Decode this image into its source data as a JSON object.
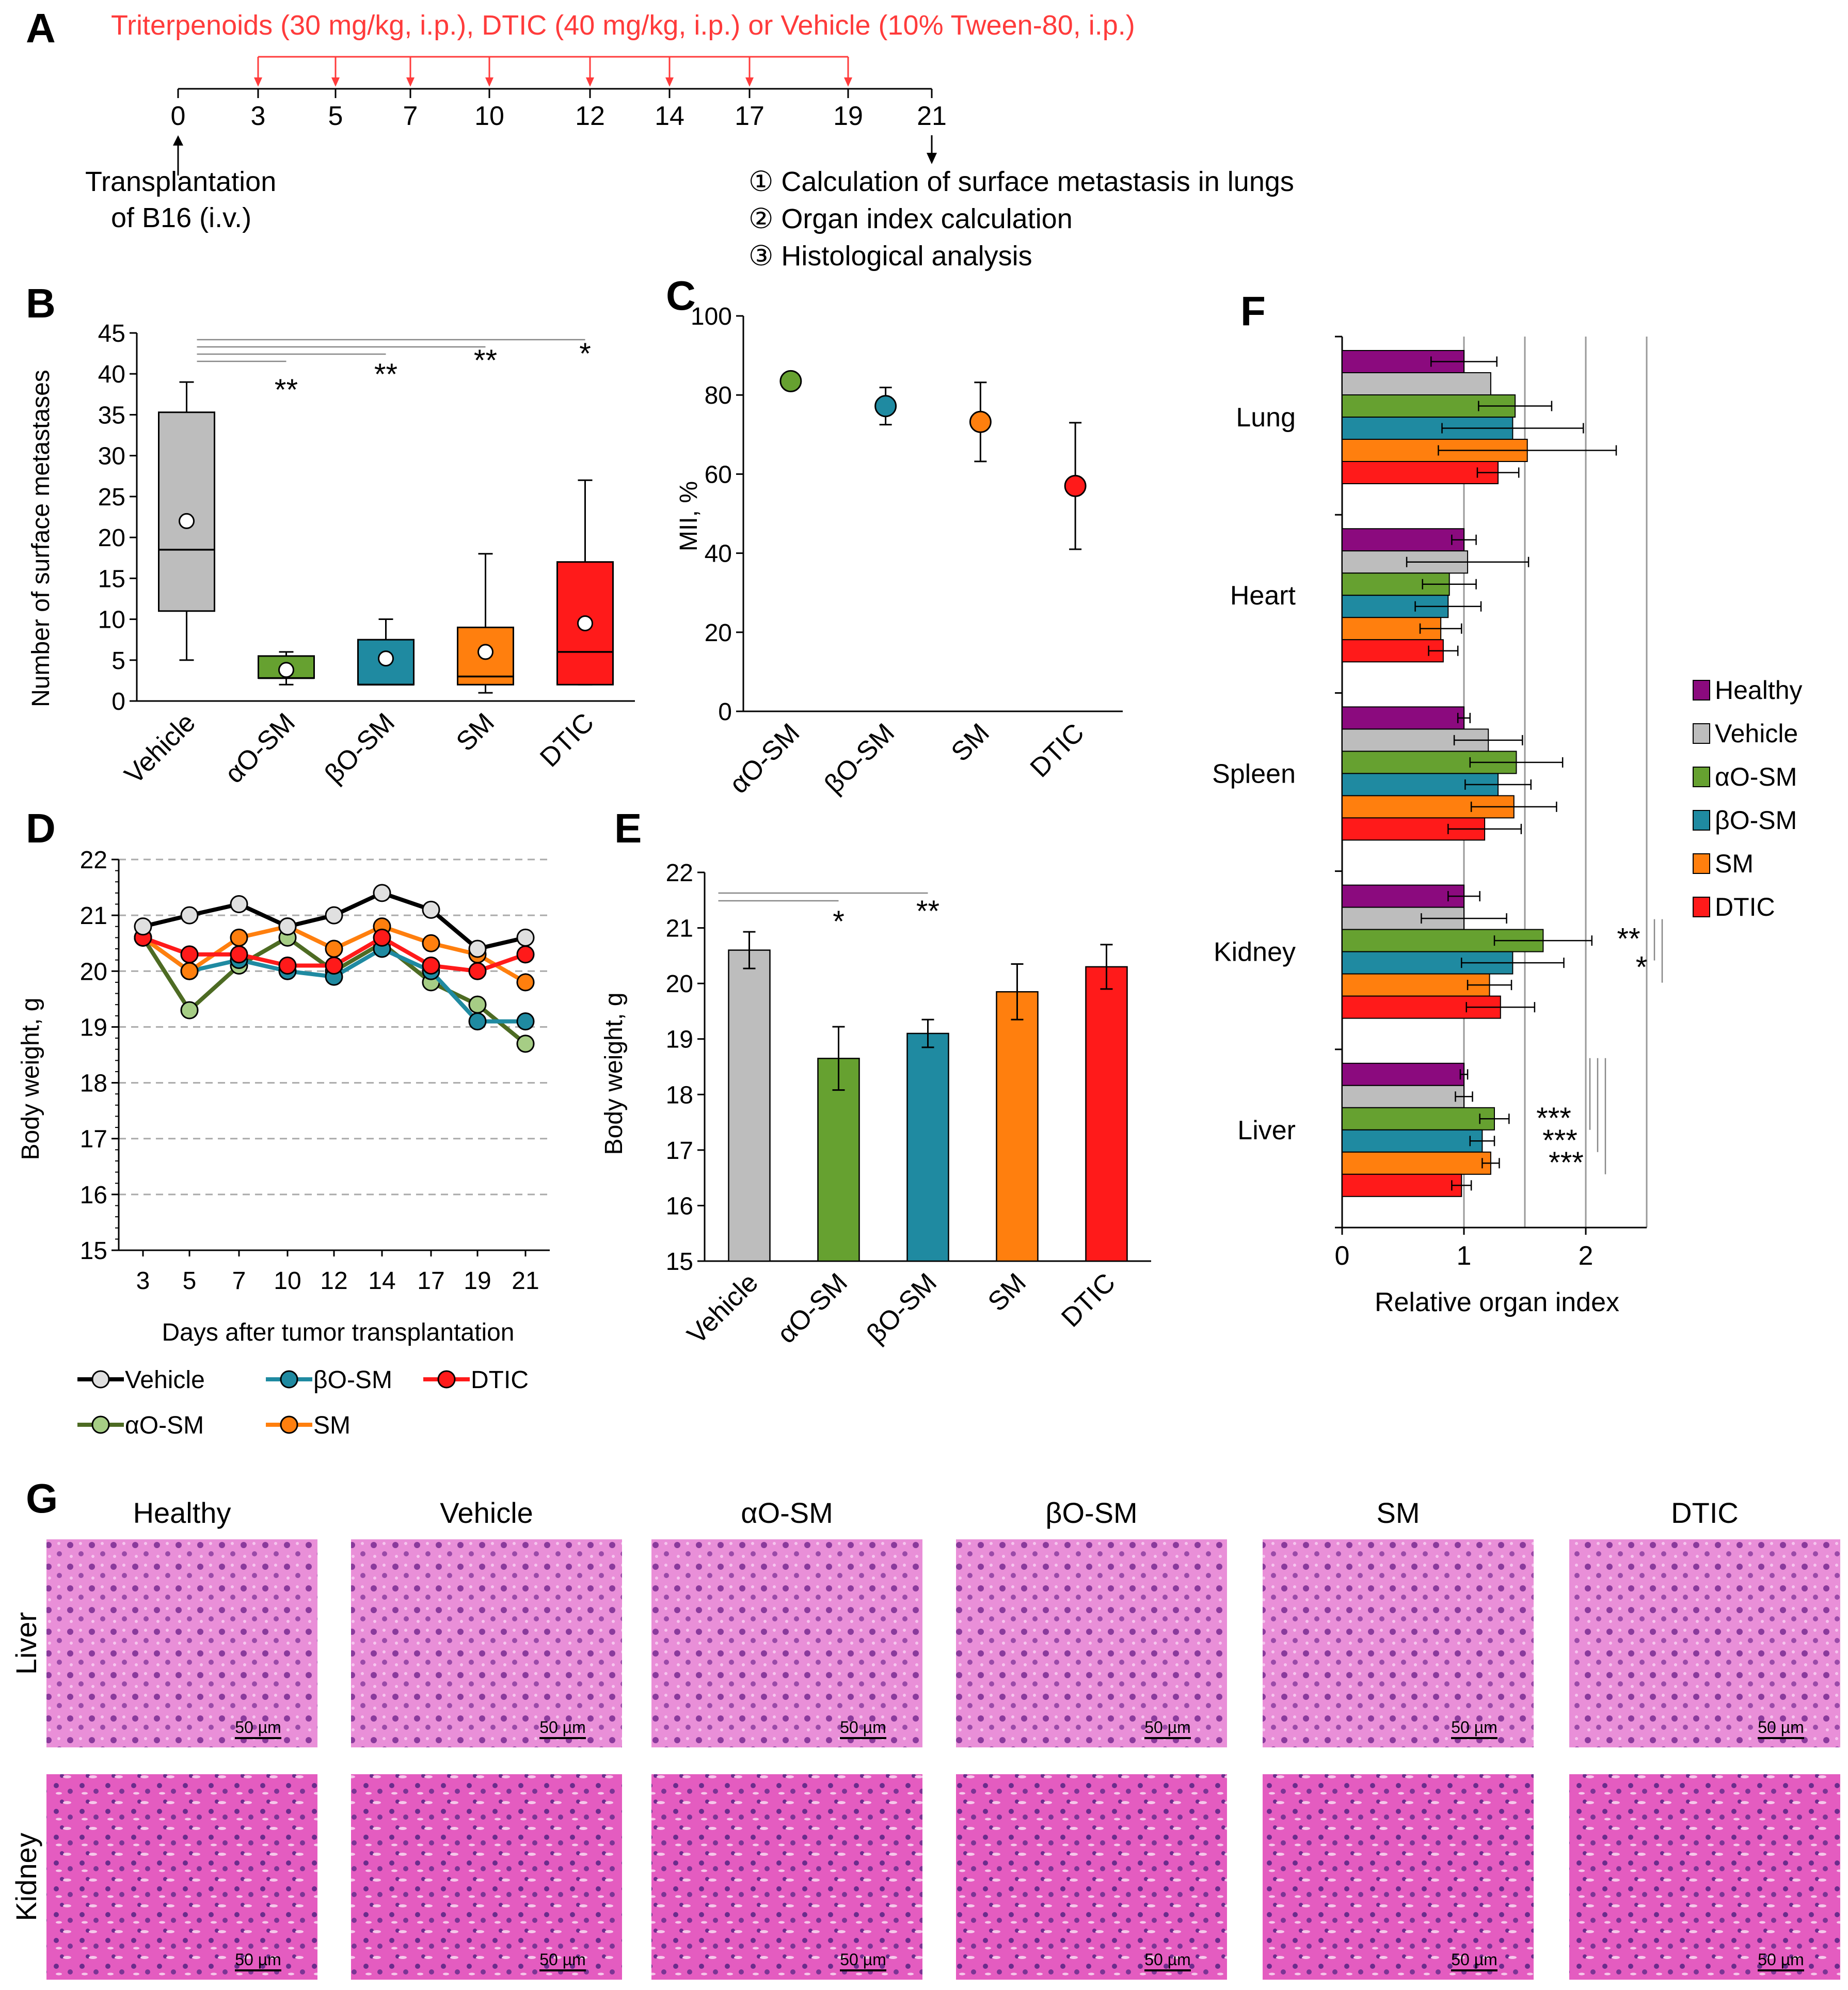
{
  "panels": {
    "A": "A",
    "B": "B",
    "C": "C",
    "D": "D",
    "E": "E",
    "F": "F",
    "G": "G"
  },
  "colors": {
    "Healthy": "#8b0a7e",
    "Vehicle": "#bdbdbd",
    "aO-SM": "#66a130",
    "bO-SM": "#1f8aa1",
    "SM": "#ff7f0e",
    "DTIC": "#ff1a1a",
    "aO-SM-line": "#4d6b23",
    "aO-SM-marker": "#a6cd85"
  },
  "timeline": {
    "treatment_label": "Triterpenoids (30 mg/kg, i.p.), DTIC (40 mg/kg, i.p.) or Vehicle (10% Tween-80, i.p.)",
    "days": [
      "0",
      "3",
      "5",
      "7",
      "10",
      "12",
      "14",
      "17",
      "19",
      "21"
    ],
    "treatment_days": [
      "3",
      "5",
      "7",
      "10",
      "12",
      "14",
      "17",
      "19"
    ],
    "transplant_line1": "Transplantation",
    "transplant_line2": "of B16 (i.v.)",
    "outcomes": [
      "① Calculation of surface metastasis in lungs",
      "② Organ index calculation",
      "③ Histological analysis"
    ]
  },
  "chart_data": [
    {
      "id": "B",
      "type": "box",
      "ylabel": "Number of surface metastases",
      "categories": [
        "Vehicle",
        "αO-SM",
        "βO-SM",
        "SM",
        "DTIC"
      ],
      "ylim": [
        0,
        45
      ],
      "yticks": [
        0,
        5,
        10,
        15,
        20,
        25,
        30,
        35,
        40,
        45
      ],
      "boxes": [
        {
          "min": 5,
          "q1": 11,
          "median": 18.5,
          "q3": 35.3,
          "max": 39,
          "mean": 22
        },
        {
          "min": 2,
          "q1": 2.8,
          "median": 2.8,
          "q3": 5.5,
          "max": 6,
          "mean": 3.8
        },
        {
          "min": 2,
          "q1": 2,
          "median": 2,
          "q3": 7.5,
          "max": 10,
          "mean": 5.2
        },
        {
          "min": 1,
          "q1": 2,
          "median": 3,
          "q3": 9,
          "max": 18,
          "mean": 6
        },
        {
          "min": 2,
          "q1": 2,
          "median": 6,
          "q3": 17,
          "max": 27,
          "mean": 9.5
        }
      ],
      "significance": [
        "**",
        "**",
        "**",
        "*"
      ]
    },
    {
      "id": "C",
      "type": "scatter",
      "ylabel": "MII, %",
      "categories": [
        "αO-SM",
        "βO-SM",
        "SM",
        "DTIC"
      ],
      "ylim": [
        0,
        100
      ],
      "yticks": [
        0,
        20,
        40,
        60,
        80,
        100
      ],
      "values": [
        83.5,
        77.2,
        73.2,
        57
      ],
      "errors": [
        0,
        4.7,
        10,
        16
      ]
    },
    {
      "id": "D",
      "type": "line",
      "ylabel": "Body weight, g",
      "xlabel": "Days after tumor transplantation",
      "x": [
        "3",
        "5",
        "7",
        "10",
        "12",
        "14",
        "17",
        "19",
        "21"
      ],
      "ylim": [
        15,
        22
      ],
      "yticks": [
        15,
        16,
        17,
        18,
        19,
        20,
        21,
        22
      ],
      "series": [
        {
          "name": "Vehicle",
          "values": [
            20.8,
            21.0,
            21.2,
            20.8,
            21.0,
            21.4,
            21.1,
            20.4,
            20.6
          ]
        },
        {
          "name": "αO-SM",
          "values": [
            20.6,
            19.3,
            20.1,
            20.6,
            20.0,
            20.5,
            19.8,
            19.4,
            18.7
          ]
        },
        {
          "name": "βO-SM",
          "values": [
            20.6,
            20.0,
            20.2,
            20.0,
            19.9,
            20.4,
            20.0,
            19.1,
            19.1
          ]
        },
        {
          "name": "SM",
          "values": [
            20.6,
            20.0,
            20.6,
            20.8,
            20.4,
            20.8,
            20.5,
            20.3,
            19.8
          ]
        },
        {
          "name": "DTIC",
          "values": [
            20.6,
            20.3,
            20.3,
            20.1,
            20.1,
            20.6,
            20.1,
            20.0,
            20.3
          ]
        }
      ]
    },
    {
      "id": "E",
      "type": "bar",
      "ylabel": "Body weight, g",
      "categories": [
        "Vehicle",
        "αO-SM",
        "βO-SM",
        "SM",
        "DTIC"
      ],
      "ylim": [
        15,
        22
      ],
      "yticks": [
        15,
        16,
        17,
        18,
        19,
        20,
        21,
        22
      ],
      "values": [
        20.6,
        18.65,
        19.1,
        19.85,
        20.3
      ],
      "errors": [
        0.33,
        0.57,
        0.25,
        0.5,
        0.4
      ],
      "significance": [
        "*",
        "**"
      ]
    },
    {
      "id": "F",
      "type": "bar-horizontal",
      "xlabel": "Relative organ index",
      "xlim": [
        0,
        2.5
      ],
      "xticks": [
        0,
        1,
        2
      ],
      "organs": [
        "Lung",
        "Heart",
        "Spleen",
        "Kidney",
        "Liver"
      ],
      "series": [
        {
          "name": "Healthy",
          "values": [
            1.0,
            1.0,
            1.0,
            1.0,
            1.0
          ],
          "errors": [
            0.27,
            0.1,
            0.05,
            0.13,
            0.03
          ]
        },
        {
          "name": "Vehicle",
          "values": [
            1.22,
            1.03,
            1.2,
            1.0,
            1.0
          ],
          "errors": [
            0,
            0.5,
            0.28,
            0.35,
            0.07
          ]
        },
        {
          "name": "αO-SM",
          "values": [
            1.42,
            0.88,
            1.43,
            1.65,
            1.25
          ],
          "errors": [
            0.3,
            0.22,
            0.38,
            0.4,
            0.12
          ]
        },
        {
          "name": "βO-SM",
          "values": [
            1.4,
            0.87,
            1.28,
            1.4,
            1.15
          ],
          "errors": [
            0.58,
            0.27,
            0.27,
            0.42,
            0.1
          ]
        },
        {
          "name": "SM",
          "values": [
            1.52,
            0.81,
            1.41,
            1.21,
            1.22
          ],
          "errors": [
            0.73,
            0.17,
            0.35,
            0.18,
            0.07
          ]
        },
        {
          "name": "DTIC",
          "values": [
            1.28,
            0.83,
            1.17,
            1.3,
            0.98
          ],
          "errors": [
            0.17,
            0.12,
            0.3,
            0.28,
            0.08
          ]
        }
      ],
      "significance": {
        "Kidney": [
          "**",
          "*"
        ],
        "Liver": [
          "***",
          "***",
          "***"
        ]
      }
    }
  ],
  "histology": {
    "groups": [
      "Healthy",
      "Vehicle",
      "αO-SM",
      "βO-SM",
      "SM",
      "DTIC"
    ],
    "rows": [
      "Liver",
      "Kidney"
    ],
    "scale_bar": "50 µm"
  }
}
